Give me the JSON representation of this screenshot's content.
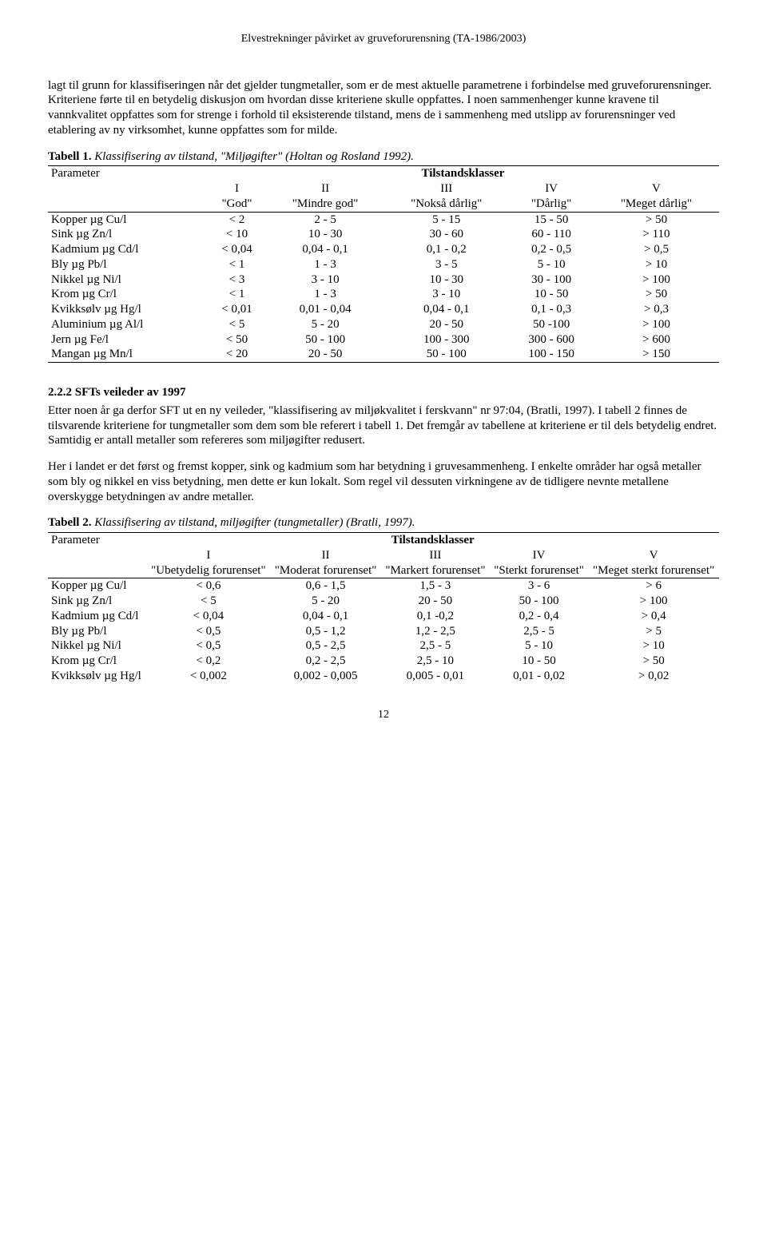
{
  "header": "Elvestrekninger påvirket av gruveforurensning (TA-1986/2003)",
  "para1": "lagt til grunn for klassifiseringen når det gjelder tungmetaller, som er de mest aktuelle parametrene i forbindelse med gruveforurensninger.  Kriteriene førte til en betydelig diskusjon om hvordan disse kriteriene skulle oppfattes. I noen sammenhenger kunne kravene til vannkvalitet oppfattes som for strenge i forhold til eksisterende tilstand, mens de i sammenheng med utslipp av forurensninger ved etablering av ny virksomhet, kunne oppfattes som for milde.",
  "table1": {
    "caption_label": "Tabell 1.",
    "caption_title": "Klassifisering av tilstand, \"Miljøgifter\" (Holtan og Rosland 1992).",
    "header_group": "Tilstandsklasser",
    "header_param": "Parameter",
    "cols": [
      "I",
      "II",
      "III",
      "IV",
      "V"
    ],
    "col_labels": [
      "\"God\"",
      "\"Mindre god\"",
      "\"Nokså dårlig\"",
      "\"Dårlig\"",
      "\"Meget dårlig\""
    ],
    "rows": [
      {
        "p": "Kopper µg Cu/l",
        "v": [
          "< 2",
          "2 - 5",
          "5 - 15",
          "15 - 50",
          "> 50"
        ]
      },
      {
        "p": "Sink µg Zn/l",
        "v": [
          "< 10",
          "10 - 30",
          "30 - 60",
          "60 - 110",
          "> 110"
        ]
      },
      {
        "p": "Kadmium µg Cd/l",
        "v": [
          "< 0,04",
          "0,04 - 0,1",
          "0,1 - 0,2",
          "0,2 - 0,5",
          "> 0,5"
        ]
      },
      {
        "p": "Bly µg Pb/l",
        "v": [
          "< 1",
          "1 - 3",
          "3 - 5",
          "5 - 10",
          "> 10"
        ]
      },
      {
        "p": "Nikkel µg Ni/l",
        "v": [
          "< 3",
          "3 - 10",
          "10 - 30",
          "30 - 100",
          "> 100"
        ]
      },
      {
        "p": "Krom µg Cr/l",
        "v": [
          "< 1",
          "1 - 3",
          "3 - 10",
          "10 - 50",
          "> 50"
        ]
      },
      {
        "p": "Kvikksølv µg Hg/l",
        "v": [
          "< 0,01",
          "0,01 - 0,04",
          "0,04 - 0,1",
          "0,1 - 0,3",
          "> 0,3"
        ]
      },
      {
        "p": "Aluminium µg Al/l",
        "v": [
          "< 5",
          "5 - 20",
          "20 - 50",
          "50 -100",
          "> 100"
        ]
      },
      {
        "p": "Jern µg Fe/l",
        "v": [
          "< 50",
          "50 - 100",
          "100 - 300",
          "300 - 600",
          "> 600"
        ]
      },
      {
        "p": "Mangan µg Mn/l",
        "v": [
          "< 20",
          "20 - 50",
          "50 - 100",
          "100 - 150",
          "> 150"
        ]
      }
    ]
  },
  "section_heading": "2.2.2 SFTs veileder av 1997",
  "para2": "Etter noen år ga derfor SFT ut en ny veileder, \"klassifisering av miljøkvalitet i ferskvann\" nr 97:04, (Bratli, 1997). I tabell 2 finnes de tilsvarende kriteriene for tungmetaller som dem som ble referert i tabell 1. Det fremgår av tabellene at kriteriene er til dels betydelig endret. Samtidig er antall metaller som refereres som miljøgifter redusert.",
  "para3": "Her i landet er det først og fremst kopper, sink og kadmium som har betydning i gruvesammenheng. I enkelte områder har også metaller som bly og nikkel en viss betydning, men dette er kun lokalt.  Som regel vil dessuten virkningene av de tidligere nevnte metallene overskygge betydningen av andre metaller.",
  "table2": {
    "caption_label": "Tabell 2.",
    "caption_title": "Klassifisering av tilstand, miljøgifter (tungmetaller) (Bratli, 1997).",
    "header_group": "Tilstandsklasser",
    "header_param": "Parameter",
    "cols": [
      "I",
      "II",
      "III",
      "IV",
      "V"
    ],
    "col_labels": [
      "\"Ubetydelig forurenset\"",
      "\"Moderat forurenset\"",
      "\"Markert forurenset\"",
      "\"Sterkt forurenset\"",
      "\"Meget sterkt forurenset\""
    ],
    "rows": [
      {
        "p": "Kopper µg Cu/l",
        "v": [
          "< 0,6",
          "0,6 - 1,5",
          "1,5 - 3",
          "3 - 6",
          "> 6"
        ]
      },
      {
        "p": "Sink µg Zn/l",
        "v": [
          "< 5",
          "5 - 20",
          "20 - 50",
          "50 - 100",
          "> 100"
        ]
      },
      {
        "p": "Kadmium µg Cd/l",
        "v": [
          "< 0,04",
          "0,04 - 0,1",
          "0,1 -0,2",
          "0,2 - 0,4",
          "> 0,4"
        ]
      },
      {
        "p": "Bly µg Pb/l",
        "v": [
          "< 0,5",
          "0,5 - 1,2",
          "1,2 - 2,5",
          "2,5 - 5",
          "> 5"
        ]
      },
      {
        "p": "Nikkel µg Ni/l",
        "v": [
          "< 0,5",
          "0,5 - 2,5",
          "2,5 - 5",
          "5 - 10",
          "> 10"
        ]
      },
      {
        "p": "Krom µg Cr/l",
        "v": [
          "< 0,2",
          "0,2 - 2,5",
          "2,5 - 10",
          "10 - 50",
          "> 50"
        ]
      },
      {
        "p": "Kvikksølv µg Hg/l",
        "v": [
          "< 0,002",
          "0,002 - 0,005",
          "0,005 - 0,01",
          "0,01 - 0,02",
          "> 0,02"
        ]
      }
    ]
  },
  "page_number": "12"
}
